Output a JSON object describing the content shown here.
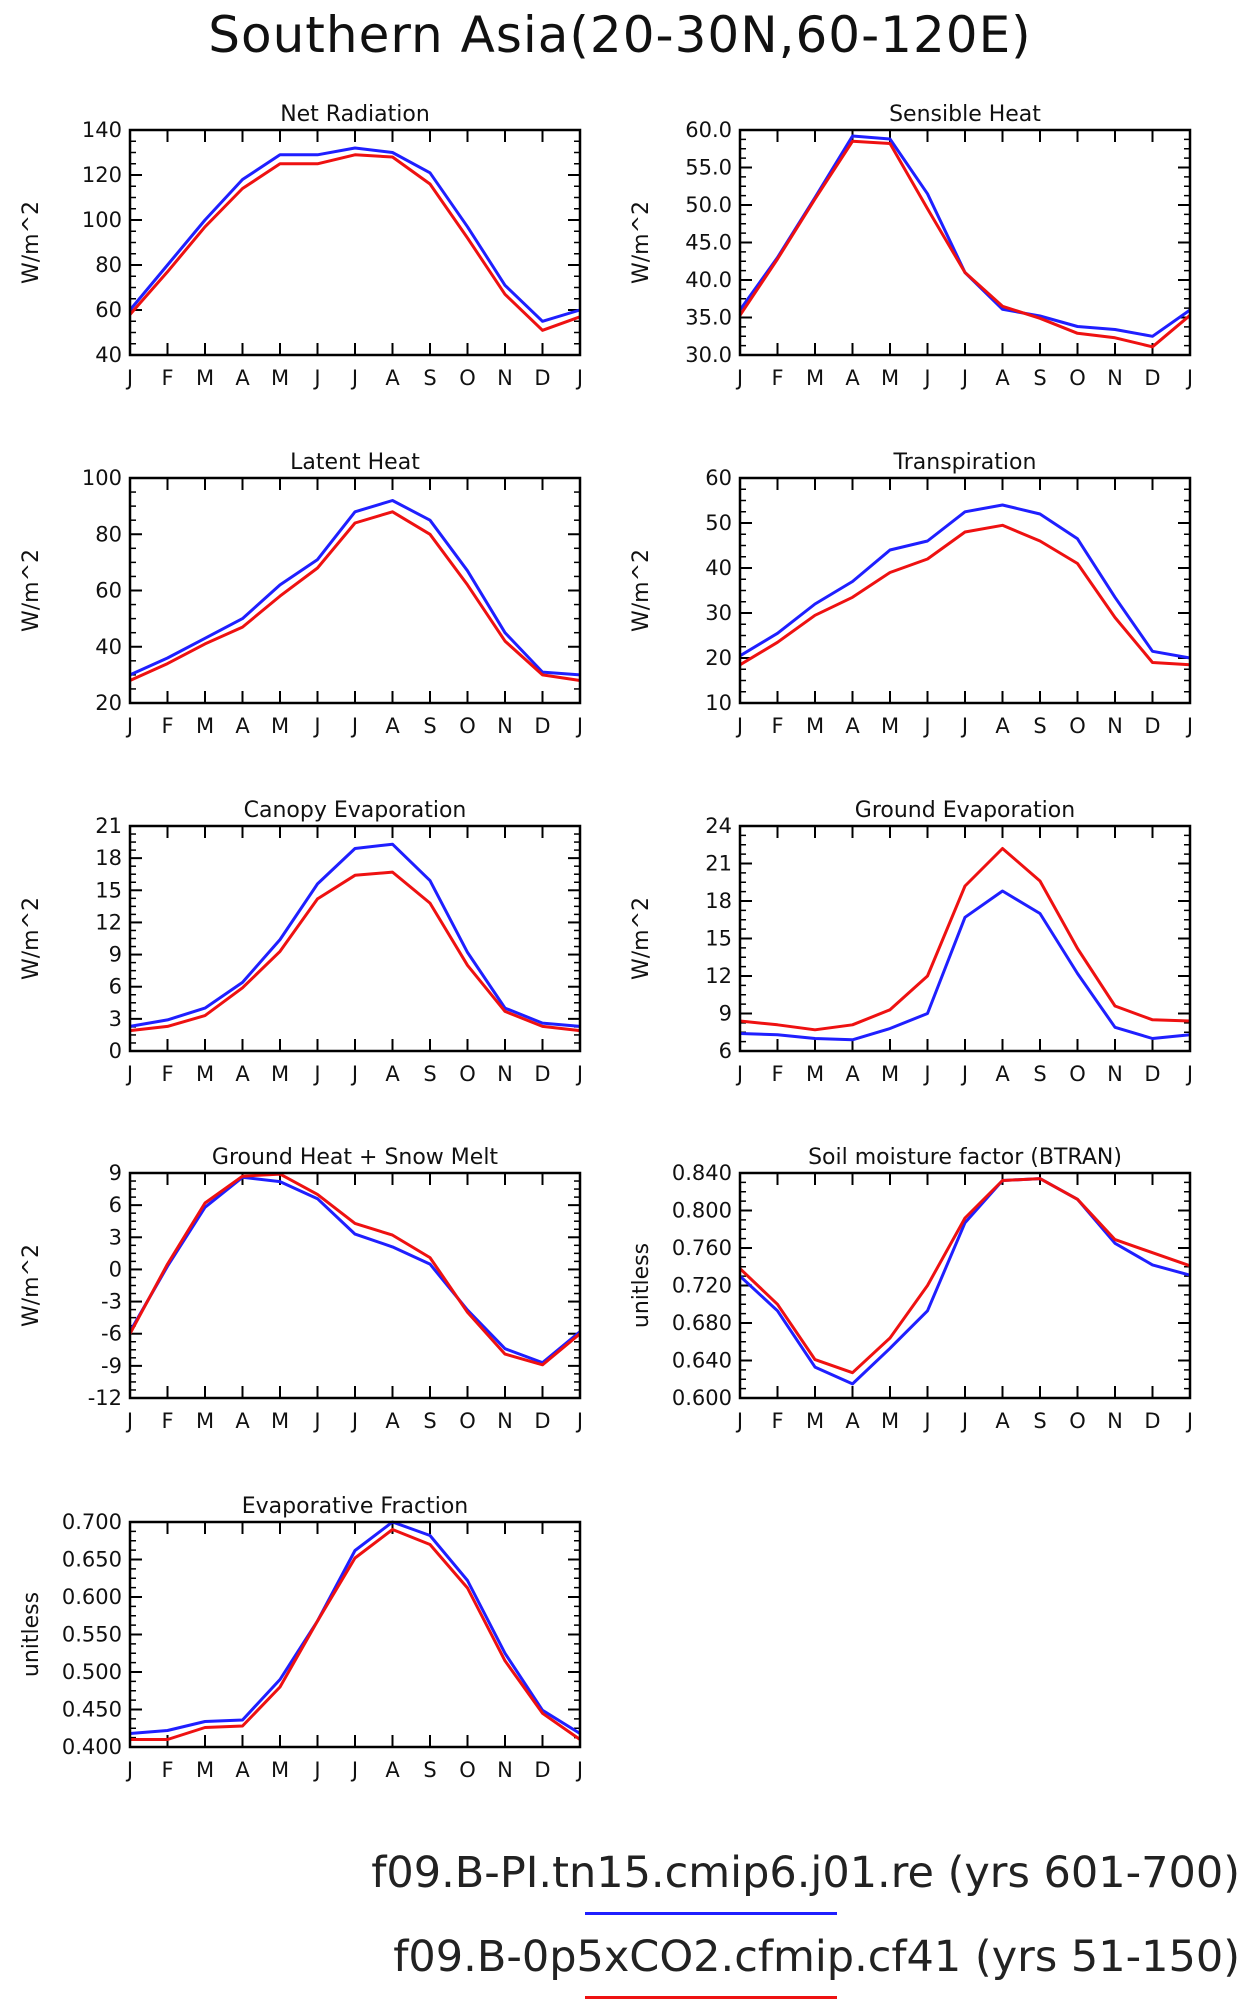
{
  "title": "Southern Asia(20-30N,60-120E)",
  "colors": {
    "run1": "#1f1fff",
    "run2": "#ee1111",
    "axis": "#000000"
  },
  "legend": [
    {
      "label": "f09.B-PI.tn15.cmip6.j01.re (yrs 601-700)",
      "color": "#1f1fff"
    },
    {
      "label": "f09.B-0p5xCO2.cfmip.cf41 (yrs 51-150)",
      "color": "#ee1111"
    }
  ],
  "chart_data": [
    {
      "type": "line",
      "title": "Net Radiation",
      "ylabel": "W/m^2",
      "categories": [
        "J",
        "F",
        "M",
        "A",
        "M",
        "J",
        "J",
        "A",
        "S",
        "O",
        "N",
        "D",
        "J"
      ],
      "ylim": [
        40,
        140
      ],
      "yticks": [
        "40",
        "60",
        "80",
        "100",
        "120",
        "140"
      ],
      "series": [
        {
          "values": [
            60,
            80,
            100,
            118,
            129,
            129,
            132,
            130,
            121,
            97,
            71,
            55,
            60
          ]
        },
        {
          "values": [
            58,
            77,
            97,
            114,
            125,
            125,
            129,
            128,
            116,
            92,
            67,
            51,
            57
          ]
        }
      ]
    },
    {
      "type": "line",
      "title": "Sensible Heat",
      "ylabel": "W/m^2",
      "categories": [
        "J",
        "F",
        "M",
        "A",
        "M",
        "J",
        "J",
        "A",
        "S",
        "O",
        "N",
        "D",
        "J"
      ],
      "ylim": [
        30,
        60
      ],
      "yticks": [
        "30.0",
        "35.0",
        "40.0",
        "45.0",
        "50.0",
        "55.0",
        "60.0"
      ],
      "series": [
        {
          "values": [
            36.0,
            43.0,
            51.0,
            59.2,
            58.8,
            51.5,
            41.0,
            36.1,
            35.2,
            33.8,
            33.4,
            32.5,
            36.0
          ]
        },
        {
          "values": [
            35.3,
            42.8,
            50.8,
            58.5,
            58.2,
            49.5,
            41.0,
            36.5,
            34.9,
            32.9,
            32.3,
            31.1,
            35.3
          ]
        }
      ]
    },
    {
      "type": "line",
      "title": "Latent Heat",
      "ylabel": "W/m^2",
      "categories": [
        "J",
        "F",
        "M",
        "A",
        "M",
        "J",
        "J",
        "A",
        "S",
        "O",
        "N",
        "D",
        "J"
      ],
      "ylim": [
        20,
        100
      ],
      "yticks": [
        "20",
        "40",
        "60",
        "80",
        "100"
      ],
      "series": [
        {
          "values": [
            30,
            36,
            43,
            50,
            62,
            71,
            88,
            92,
            85,
            67,
            45,
            31,
            30
          ]
        },
        {
          "values": [
            28,
            34,
            41,
            47,
            58,
            68,
            84,
            88,
            80,
            62,
            42,
            30,
            28
          ]
        }
      ]
    },
    {
      "type": "line",
      "title": "Transpiration",
      "ylabel": "W/m^2",
      "categories": [
        "J",
        "F",
        "M",
        "A",
        "M",
        "J",
        "J",
        "A",
        "S",
        "O",
        "N",
        "D",
        "J"
      ],
      "ylim": [
        10,
        60
      ],
      "yticks": [
        "10",
        "20",
        "30",
        "40",
        "50",
        "60"
      ],
      "series": [
        {
          "values": [
            20.5,
            25.5,
            32,
            37,
            44,
            46,
            52.5,
            54,
            52,
            46.5,
            33.5,
            21.5,
            20
          ]
        },
        {
          "values": [
            18.5,
            23.5,
            29.5,
            33.5,
            39,
            42,
            48,
            49.5,
            46,
            41,
            29,
            19,
            18.5
          ]
        }
      ]
    },
    {
      "type": "line",
      "title": "Canopy Evaporation",
      "ylabel": "W/m^2",
      "categories": [
        "J",
        "F",
        "M",
        "A",
        "M",
        "J",
        "J",
        "A",
        "S",
        "O",
        "N",
        "D",
        "J"
      ],
      "ylim": [
        0,
        21
      ],
      "yticks": [
        "0",
        "3",
        "6",
        "9",
        "12",
        "15",
        "18",
        "21"
      ],
      "series": [
        {
          "values": [
            2.3,
            2.9,
            4.0,
            6.4,
            10.4,
            15.6,
            18.9,
            19.3,
            15.9,
            9.2,
            4.0,
            2.6,
            2.3
          ]
        },
        {
          "values": [
            1.9,
            2.3,
            3.3,
            5.9,
            9.3,
            14.2,
            16.4,
            16.7,
            13.8,
            8.0,
            3.7,
            2.3,
            1.9
          ]
        }
      ]
    },
    {
      "type": "line",
      "title": "Ground Evaporation",
      "ylabel": "W/m^2",
      "categories": [
        "J",
        "F",
        "M",
        "A",
        "M",
        "J",
        "J",
        "A",
        "S",
        "O",
        "N",
        "D",
        "J"
      ],
      "ylim": [
        6,
        24
      ],
      "yticks": [
        "6",
        "9",
        "12",
        "15",
        "18",
        "21",
        "24"
      ],
      "series": [
        {
          "values": [
            7.4,
            7.3,
            7.0,
            6.9,
            7.8,
            9.0,
            16.7,
            18.8,
            17.0,
            12.2,
            7.9,
            7.0,
            7.3
          ]
        },
        {
          "values": [
            8.4,
            8.1,
            7.7,
            8.1,
            9.3,
            12.0,
            19.2,
            22.2,
            19.6,
            14.2,
            9.6,
            8.5,
            8.4
          ]
        }
      ]
    },
    {
      "type": "line",
      "title": "Ground Heat + Snow Melt",
      "ylabel": "W/m^2",
      "categories": [
        "J",
        "F",
        "M",
        "A",
        "M",
        "J",
        "J",
        "A",
        "S",
        "O",
        "N",
        "D",
        "J"
      ],
      "ylim": [
        -12,
        9
      ],
      "yticks": [
        "-12",
        "-9",
        "-6",
        "-3",
        "0",
        "3",
        "6",
        "9"
      ],
      "series": [
        {
          "values": [
            -5.8,
            0.3,
            5.8,
            8.6,
            8.2,
            6.6,
            3.3,
            2.1,
            0.5,
            -3.8,
            -7.4,
            -8.7,
            -5.8
          ]
        },
        {
          "values": [
            -6.0,
            0.5,
            6.2,
            8.7,
            8.9,
            7.0,
            4.3,
            3.2,
            1.1,
            -4.0,
            -7.9,
            -8.9,
            -6.0
          ]
        }
      ]
    },
    {
      "type": "line",
      "title": "Soil moisture factor (BTRAN)",
      "ylabel": "unitless",
      "categories": [
        "J",
        "F",
        "M",
        "A",
        "M",
        "J",
        "J",
        "A",
        "S",
        "O",
        "N",
        "D",
        "J"
      ],
      "ylim": [
        0.6,
        0.84
      ],
      "yticks": [
        "0.600",
        "0.640",
        "0.680",
        "0.720",
        "0.760",
        "0.800",
        "0.840"
      ],
      "series": [
        {
          "values": [
            0.73,
            0.693,
            0.633,
            0.615,
            0.653,
            0.693,
            0.787,
            0.832,
            0.834,
            0.812,
            0.765,
            0.742,
            0.731
          ]
        },
        {
          "values": [
            0.738,
            0.7,
            0.641,
            0.627,
            0.664,
            0.72,
            0.792,
            0.832,
            0.834,
            0.812,
            0.769,
            0.755,
            0.741
          ]
        }
      ]
    },
    {
      "type": "line",
      "title": "Evaporative Fraction",
      "ylabel": "unitless",
      "categories": [
        "J",
        "F",
        "M",
        "A",
        "M",
        "J",
        "J",
        "A",
        "S",
        "O",
        "N",
        "D",
        "J"
      ],
      "ylim": [
        0.4,
        0.7
      ],
      "yticks": [
        "0.400",
        "0.450",
        "0.500",
        "0.550",
        "0.600",
        "0.650",
        "0.700"
      ],
      "series": [
        {
          "values": [
            0.418,
            0.422,
            0.434,
            0.436,
            0.49,
            0.568,
            0.662,
            0.7,
            0.682,
            0.622,
            0.525,
            0.449,
            0.418
          ]
        },
        {
          "values": [
            0.41,
            0.41,
            0.426,
            0.428,
            0.48,
            0.568,
            0.652,
            0.69,
            0.67,
            0.612,
            0.515,
            0.445,
            0.41
          ]
        }
      ]
    }
  ]
}
